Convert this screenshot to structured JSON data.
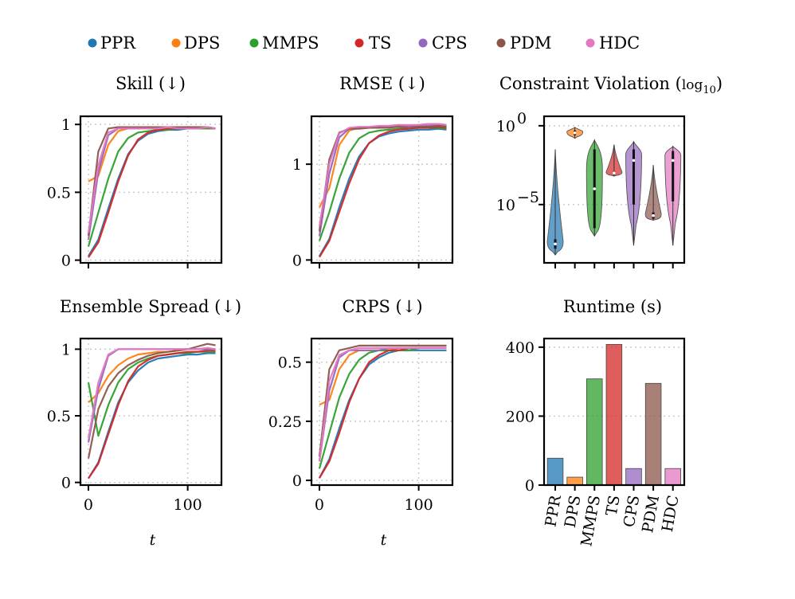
{
  "legend": {
    "items": [
      {
        "name": "PPR",
        "color": "#1f77b4"
      },
      {
        "name": "DPS",
        "color": "#ff7f0e"
      },
      {
        "name": "MMPS",
        "color": "#2ca02c"
      },
      {
        "name": "TS",
        "color": "#d62728"
      },
      {
        "name": "CPS",
        "color": "#9467bd"
      },
      {
        "name": "PDM",
        "color": "#8c564b"
      },
      {
        "name": "HDC",
        "color": "#e377c2"
      }
    ]
  },
  "chart_data": [
    {
      "type": "line",
      "title": "Skill (↓)",
      "xlabel": "",
      "xlim": [
        -8,
        134
      ],
      "ylim": [
        -0.02,
        1.06
      ],
      "yticks": [
        0,
        0.5,
        1
      ],
      "ytick_labels": [
        "0",
        "0.5",
        "1"
      ],
      "xticks": [
        0,
        100
      ],
      "x": [
        0,
        10,
        20,
        30,
        40,
        50,
        60,
        70,
        80,
        90,
        100,
        110,
        120,
        128
      ],
      "series": [
        {
          "name": "PPR",
          "values": [
            0.03,
            0.15,
            0.38,
            0.6,
            0.78,
            0.88,
            0.93,
            0.95,
            0.96,
            0.96,
            0.97,
            0.97,
            0.97,
            0.97
          ]
        },
        {
          "name": "DPS",
          "values": [
            0.58,
            0.62,
            0.85,
            0.95,
            0.97,
            0.97,
            0.97,
            0.97,
            0.98,
            0.97,
            0.97,
            0.97,
            0.97,
            0.97
          ]
        },
        {
          "name": "MMPS",
          "values": [
            0.1,
            0.35,
            0.6,
            0.8,
            0.9,
            0.94,
            0.95,
            0.96,
            0.96,
            0.97,
            0.97,
            0.97,
            0.97,
            0.97
          ]
        },
        {
          "name": "TS",
          "values": [
            0.02,
            0.13,
            0.35,
            0.58,
            0.77,
            0.89,
            0.94,
            0.96,
            0.97,
            0.97,
            0.98,
            0.98,
            0.98,
            0.97
          ]
        },
        {
          "name": "CPS",
          "values": [
            0.15,
            0.65,
            0.92,
            0.97,
            0.97,
            0.97,
            0.98,
            0.97,
            0.98,
            0.98,
            0.97,
            0.98,
            0.98,
            0.97
          ]
        },
        {
          "name": "PDM",
          "values": [
            0.18,
            0.8,
            0.97,
            0.98,
            0.98,
            0.98,
            0.98,
            0.98,
            0.98,
            0.98,
            0.98,
            0.98,
            0.98,
            0.97
          ]
        },
        {
          "name": "HDC",
          "values": [
            0.2,
            0.7,
            0.94,
            0.97,
            0.97,
            0.97,
            0.97,
            0.97,
            0.98,
            0.97,
            0.97,
            0.97,
            0.98,
            0.97
          ]
        }
      ]
    },
    {
      "type": "line",
      "title": "RMSE (↓)",
      "xlabel": "",
      "xlim": [
        -8,
        134
      ],
      "ylim": [
        -0.03,
        1.5
      ],
      "yticks": [
        0,
        1
      ],
      "ytick_labels": [
        "0",
        "1"
      ],
      "xticks": [
        0,
        100
      ],
      "x": [
        0,
        10,
        20,
        30,
        40,
        50,
        60,
        70,
        80,
        90,
        100,
        110,
        120,
        128
      ],
      "series": [
        {
          "name": "PPR",
          "values": [
            0.04,
            0.22,
            0.55,
            0.85,
            1.08,
            1.22,
            1.29,
            1.32,
            1.34,
            1.35,
            1.36,
            1.36,
            1.37,
            1.36
          ]
        },
        {
          "name": "DPS",
          "values": [
            0.55,
            0.75,
            1.2,
            1.35,
            1.38,
            1.38,
            1.39,
            1.4,
            1.41,
            1.4,
            1.41,
            1.42,
            1.42,
            1.41
          ]
        },
        {
          "name": "MMPS",
          "values": [
            0.2,
            0.5,
            0.85,
            1.12,
            1.27,
            1.33,
            1.35,
            1.36,
            1.37,
            1.37,
            1.38,
            1.38,
            1.38,
            1.37
          ]
        },
        {
          "name": "TS",
          "values": [
            0.03,
            0.2,
            0.5,
            0.8,
            1.05,
            1.22,
            1.3,
            1.34,
            1.36,
            1.37,
            1.38,
            1.38,
            1.39,
            1.38
          ]
        },
        {
          "name": "CPS",
          "values": [
            0.25,
            0.9,
            1.28,
            1.37,
            1.38,
            1.38,
            1.39,
            1.39,
            1.4,
            1.4,
            1.4,
            1.4,
            1.41,
            1.4
          ]
        },
        {
          "name": "PDM",
          "values": [
            0.3,
            1.05,
            1.33,
            1.37,
            1.37,
            1.38,
            1.38,
            1.38,
            1.39,
            1.38,
            1.39,
            1.39,
            1.4,
            1.39
          ]
        },
        {
          "name": "HDC",
          "values": [
            0.35,
            1.0,
            1.32,
            1.38,
            1.39,
            1.39,
            1.4,
            1.4,
            1.41,
            1.41,
            1.41,
            1.42,
            1.42,
            1.41
          ]
        }
      ]
    },
    {
      "type": "violin",
      "title": "Constraint Violation (log10)",
      "title_main": "Constraint Violation (",
      "title_sub": "10",
      "yscale": "log",
      "ylim_log10": [
        -8.7,
        0.6
      ],
      "yticks_log10": [
        0,
        -5
      ],
      "ytick_labels": [
        "10",
        "10"
      ],
      "ytick_exponents": [
        "0",
        "−5"
      ],
      "categories": [
        "PPR",
        "DPS",
        "MMPS",
        "TS",
        "CPS",
        "PDM",
        "HDC"
      ],
      "series": [
        {
          "name": "PPR",
          "min_log10": -8.2,
          "max_log10": -1.5,
          "q1_log10": -7.8,
          "median_log10": -7.5,
          "q3_log10": -7.2
        },
        {
          "name": "DPS",
          "min_log10": -0.8,
          "max_log10": -0.1,
          "q1_log10": -0.6,
          "median_log10": -0.45,
          "q3_log10": -0.3
        },
        {
          "name": "MMPS",
          "min_log10": -7.0,
          "max_log10": -0.9,
          "q1_log10": -6.5,
          "median_log10": -4.0,
          "q3_log10": -1.5
        },
        {
          "name": "TS",
          "min_log10": -3.2,
          "max_log10": -1.2,
          "q1_log10": -3.1,
          "median_log10": -3.0,
          "q3_log10": -2.9
        },
        {
          "name": "CPS",
          "min_log10": -7.6,
          "max_log10": -1.0,
          "q1_log10": -5.0,
          "median_log10": -2.2,
          "q3_log10": -1.5
        },
        {
          "name": "PDM",
          "min_log10": -6.0,
          "max_log10": -2.5,
          "q1_log10": -5.9,
          "median_log10": -5.7,
          "q3_log10": -5.5
        },
        {
          "name": "HDC",
          "min_log10": -7.6,
          "max_log10": -1.3,
          "q1_log10": -4.8,
          "median_log10": -2.2,
          "q3_log10": -1.6
        }
      ]
    },
    {
      "type": "line",
      "title": "Ensemble Spread (↓)",
      "xlabel": "t",
      "xlim": [
        -8,
        134
      ],
      "ylim": [
        -0.02,
        1.08
      ],
      "yticks": [
        0,
        0.5,
        1
      ],
      "ytick_labels": [
        "0",
        "0.5",
        "1"
      ],
      "xticks": [
        0,
        100
      ],
      "xtick_labels": [
        "0",
        "100"
      ],
      "x": [
        0,
        10,
        20,
        30,
        40,
        50,
        60,
        70,
        80,
        90,
        100,
        110,
        120,
        128
      ],
      "series": [
        {
          "name": "PPR",
          "values": [
            0.03,
            0.15,
            0.38,
            0.6,
            0.75,
            0.84,
            0.9,
            0.93,
            0.94,
            0.95,
            0.96,
            0.96,
            0.97,
            0.97
          ]
        },
        {
          "name": "DPS",
          "values": [
            0.6,
            0.67,
            0.8,
            0.88,
            0.93,
            0.96,
            0.97,
            0.98,
            0.98,
            0.99,
            1.0,
            1.0,
            1.0,
            1.0
          ]
        },
        {
          "name": "MMPS",
          "values": [
            0.75,
            0.35,
            0.58,
            0.75,
            0.85,
            0.9,
            0.93,
            0.95,
            0.96,
            0.97,
            0.97,
            0.98,
            0.98,
            0.98
          ]
        },
        {
          "name": "TS",
          "values": [
            0.03,
            0.14,
            0.36,
            0.58,
            0.76,
            0.87,
            0.92,
            0.95,
            0.96,
            0.97,
            0.98,
            0.98,
            0.99,
            0.99
          ]
        },
        {
          "name": "CPS",
          "values": [
            0.3,
            0.7,
            0.95,
            1.0,
            1.0,
            1.0,
            1.0,
            1.0,
            1.0,
            1.0,
            1.0,
            1.0,
            1.0,
            1.0
          ]
        },
        {
          "name": "PDM",
          "values": [
            0.18,
            0.55,
            0.72,
            0.82,
            0.88,
            0.92,
            0.95,
            0.97,
            0.98,
            0.99,
            1.0,
            1.02,
            1.04,
            1.03
          ]
        },
        {
          "name": "HDC",
          "values": [
            0.33,
            0.75,
            0.96,
            1.0,
            1.0,
            1.0,
            1.0,
            1.0,
            1.0,
            1.0,
            1.0,
            1.0,
            1.01,
            1.0
          ]
        }
      ]
    },
    {
      "type": "line",
      "title": "CRPS (↓)",
      "xlabel": "t",
      "xlim": [
        -8,
        134
      ],
      "ylim": [
        -0.02,
        0.6
      ],
      "yticks": [
        0,
        0.25,
        0.5
      ],
      "ytick_labels": [
        "0",
        "0.25",
        "0.5"
      ],
      "xticks": [
        0,
        100
      ],
      "xtick_labels": [
        "0",
        "100"
      ],
      "x": [
        0,
        10,
        20,
        30,
        40,
        50,
        60,
        70,
        80,
        90,
        100,
        110,
        120,
        128
      ],
      "series": [
        {
          "name": "PPR",
          "values": [
            0.01,
            0.09,
            0.22,
            0.34,
            0.43,
            0.49,
            0.52,
            0.54,
            0.55,
            0.55,
            0.55,
            0.55,
            0.55,
            0.55
          ]
        },
        {
          "name": "DPS",
          "values": [
            0.32,
            0.34,
            0.47,
            0.53,
            0.55,
            0.55,
            0.55,
            0.55,
            0.56,
            0.56,
            0.56,
            0.56,
            0.56,
            0.56
          ]
        },
        {
          "name": "MMPS",
          "values": [
            0.05,
            0.2,
            0.35,
            0.45,
            0.51,
            0.54,
            0.55,
            0.55,
            0.55,
            0.55,
            0.56,
            0.56,
            0.56,
            0.56
          ]
        },
        {
          "name": "TS",
          "values": [
            0.01,
            0.08,
            0.2,
            0.33,
            0.43,
            0.5,
            0.53,
            0.55,
            0.55,
            0.56,
            0.56,
            0.56,
            0.56,
            0.56
          ]
        },
        {
          "name": "CPS",
          "values": [
            0.08,
            0.38,
            0.52,
            0.55,
            0.55,
            0.55,
            0.55,
            0.56,
            0.56,
            0.56,
            0.56,
            0.56,
            0.56,
            0.56
          ]
        },
        {
          "name": "PDM",
          "values": [
            0.1,
            0.47,
            0.55,
            0.56,
            0.57,
            0.57,
            0.57,
            0.57,
            0.57,
            0.57,
            0.57,
            0.57,
            0.57,
            0.57
          ]
        },
        {
          "name": "HDC",
          "values": [
            0.08,
            0.42,
            0.53,
            0.55,
            0.56,
            0.56,
            0.56,
            0.56,
            0.56,
            0.56,
            0.56,
            0.56,
            0.56,
            0.56
          ]
        }
      ]
    },
    {
      "type": "bar",
      "title": "Runtime (s)",
      "ylim": [
        0,
        425
      ],
      "yticks": [
        0,
        200,
        400
      ],
      "ytick_labels": [
        "0",
        "200",
        "400"
      ],
      "categories": [
        "PPR",
        "DPS",
        "MMPS",
        "TS",
        "CPS",
        "PDM",
        "HDC"
      ],
      "values": [
        78,
        23,
        308,
        408,
        48,
        295,
        48
      ]
    }
  ]
}
